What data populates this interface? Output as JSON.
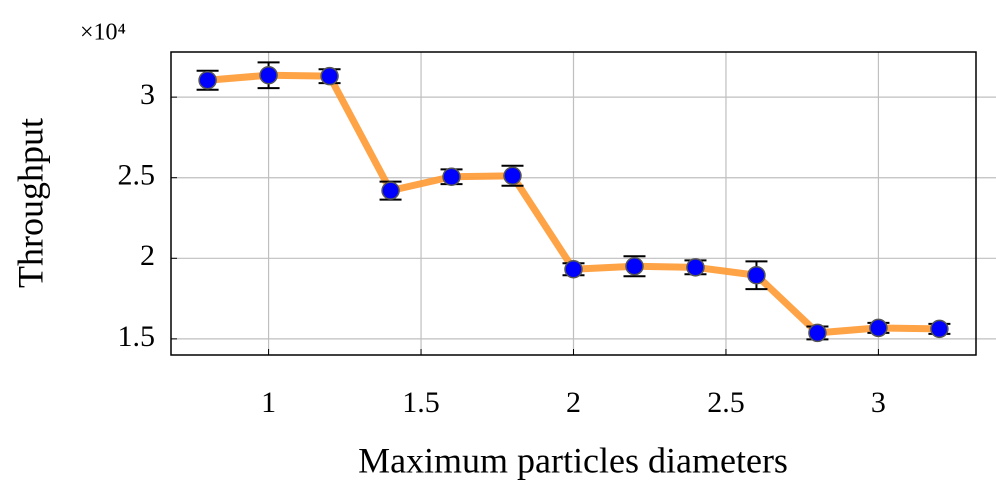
{
  "chart_data": {
    "type": "line",
    "x_label": "Maximum particles diameters",
    "y_label": "Throughput",
    "y_multiplier": "×10⁴",
    "x": [
      0.8,
      1.0,
      1.2,
      1.4,
      1.6,
      1.8,
      2.0,
      2.2,
      2.4,
      2.6,
      2.8,
      3.0,
      3.2
    ],
    "series": [
      {
        "color": "#ff9933",
        "marker_color": "#0000ff",
        "values": [
          3.105,
          3.136,
          3.13,
          2.42,
          2.506,
          2.512,
          1.932,
          1.951,
          1.944,
          1.895,
          1.537,
          1.568,
          1.562
        ],
        "errors": [
          0.059,
          0.08,
          0.043,
          0.056,
          0.046,
          0.062,
          0.037,
          0.062,
          0.043,
          0.086,
          0.04,
          0.031,
          0.031
        ]
      }
    ],
    "xlim": [
      0.68,
      3.32
    ],
    "ylim": [
      1.4,
      3.28
    ],
    "xticks": [
      1,
      1.5,
      2,
      2.5,
      3
    ],
    "yticks": [
      1.5,
      2,
      2.5,
      3
    ],
    "grid": true
  }
}
